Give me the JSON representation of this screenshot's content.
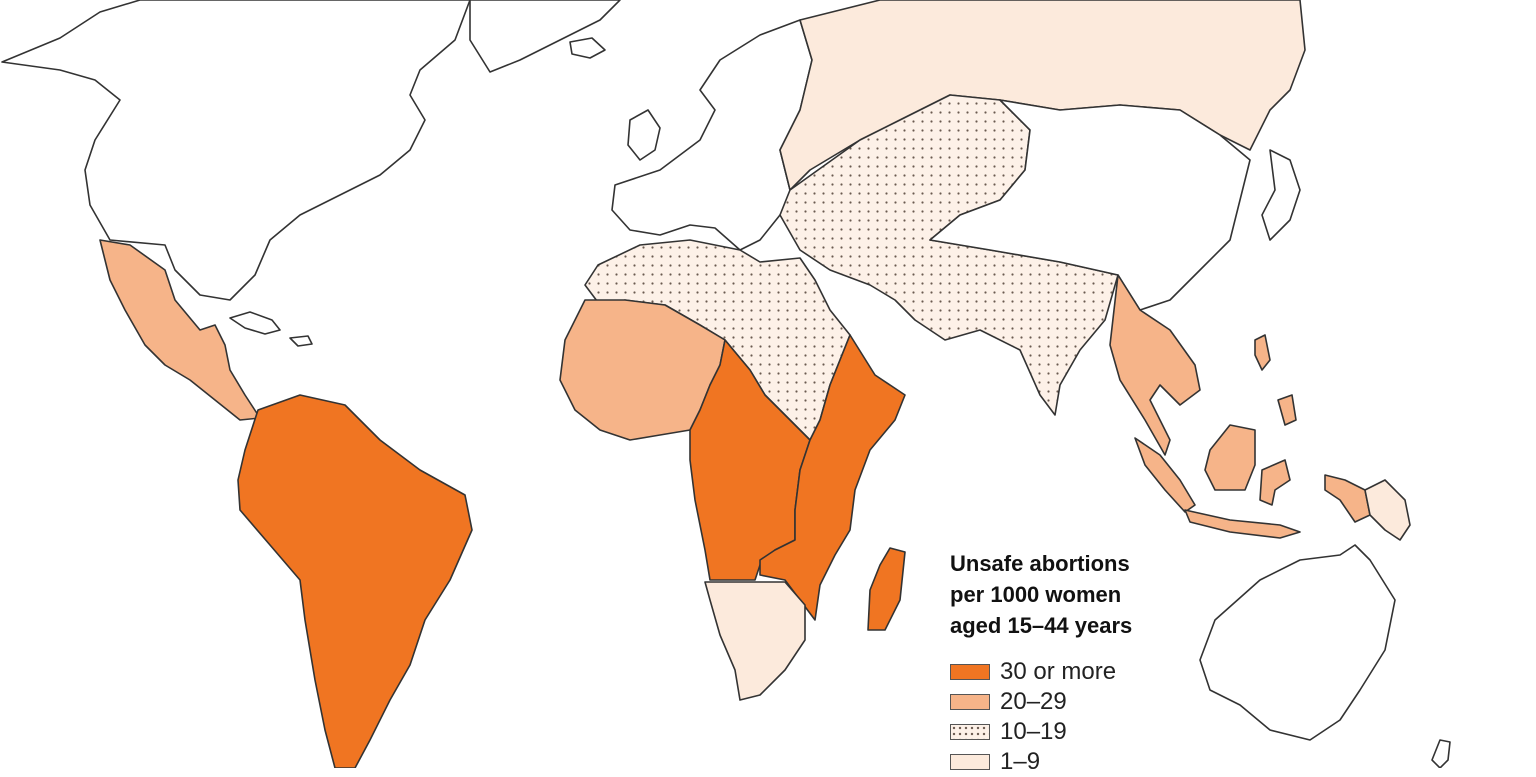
{
  "legend": {
    "title_lines": [
      "Unsafe abortions",
      "per 1000 women",
      "aged 15–44 years"
    ],
    "items": [
      {
        "label": "30 or more",
        "color": "#F07522",
        "pattern": "solid"
      },
      {
        "label": "20–29",
        "color": "#F6B489",
        "pattern": "solid"
      },
      {
        "label": "10–19",
        "color": "#FBE9DB",
        "pattern": "dots"
      },
      {
        "label": "1–9",
        "color": "#FCEADC",
        "pattern": "solid"
      }
    ]
  },
  "regions": [
    {
      "name": "Central America & Mexico",
      "category": "20–29"
    },
    {
      "name": "South America",
      "category": "30 or more"
    },
    {
      "name": "West Africa",
      "category": "20–29"
    },
    {
      "name": "Middle Africa",
      "category": "30 or more"
    },
    {
      "name": "Eastern Africa",
      "category": "30 or more"
    },
    {
      "name": "Southern Africa",
      "category": "1–9"
    },
    {
      "name": "Northern Africa",
      "category": "10–19"
    },
    {
      "name": "Western & South-Central Asia",
      "category": "10–19"
    },
    {
      "name": "South-East Asia",
      "category": "20–29"
    },
    {
      "name": "Eastern Europe & Russia",
      "category": "1–9"
    },
    {
      "name": "Melanesia",
      "category": "1–9"
    }
  ]
}
